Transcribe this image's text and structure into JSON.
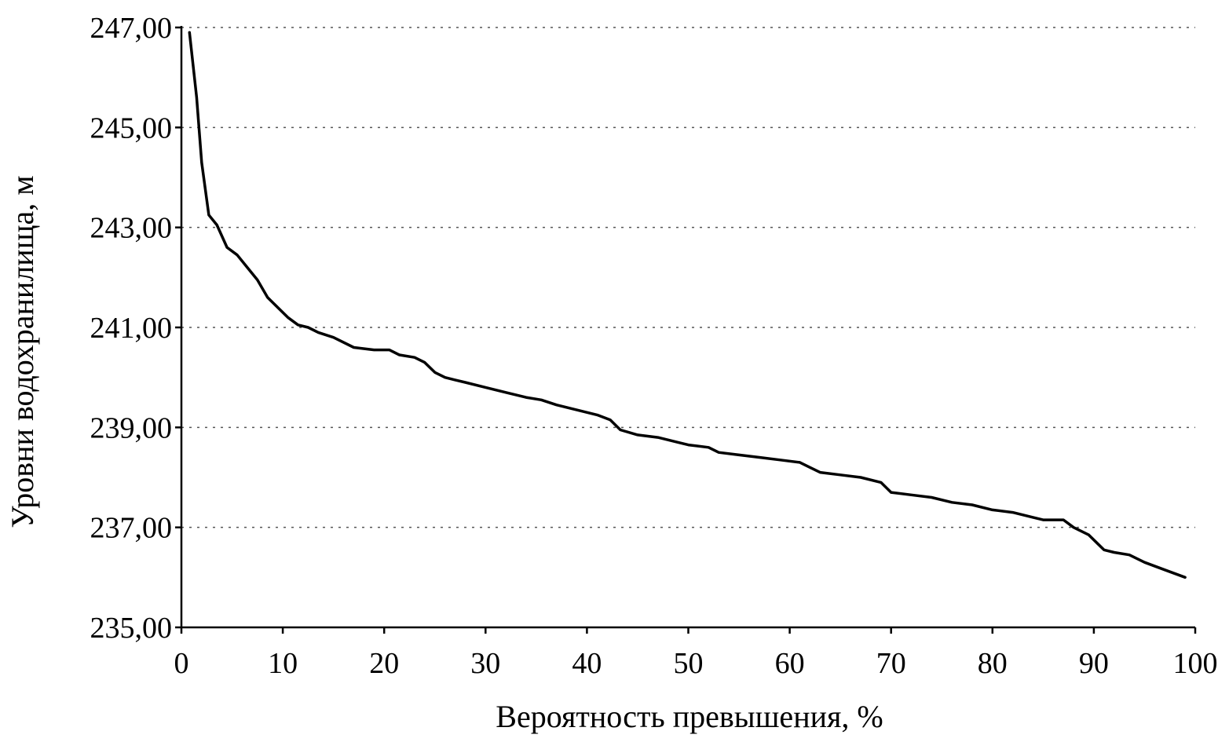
{
  "chart_data": {
    "type": "line",
    "title": "",
    "xlabel": "Вероятность превышения, %",
    "ylabel": "Уровни водохранилища, м",
    "xlim": [
      0,
      100
    ],
    "ylim": [
      235,
      247
    ],
    "x_ticks": [
      0,
      10,
      20,
      30,
      40,
      50,
      60,
      70,
      80,
      90,
      100
    ],
    "y_ticks": [
      235,
      237,
      239,
      241,
      243,
      245,
      247
    ],
    "x_tick_labels": [
      "0",
      "10",
      "20",
      "30",
      "40",
      "50",
      "60",
      "70",
      "80",
      "90",
      "100"
    ],
    "y_tick_labels": [
      "235,00",
      "237,00",
      "239,00",
      "241,00",
      "243,00",
      "245,00",
      "247,00"
    ],
    "grid": "horizontal-dashed",
    "legend": "none",
    "line_color": "#000000",
    "series": [
      {
        "x": [
          0.8,
          1.5,
          2.0,
          2.7,
          3.5,
          4.5,
          5.5,
          6.5,
          7.5,
          8.5,
          9.5,
          10.5,
          11.5,
          12.5,
          13.5,
          15,
          17,
          19,
          20.5,
          21.5,
          23,
          24,
          25,
          26,
          27,
          28,
          30,
          32,
          34,
          35.5,
          37,
          39,
          41,
          42.3,
          43.3,
          45,
          47,
          49,
          50,
          52,
          53,
          55,
          57,
          59,
          61,
          62,
          63,
          65,
          67,
          69,
          70,
          72,
          74,
          76,
          78,
          80,
          82,
          84,
          85,
          87,
          88,
          89.5,
          91,
          92,
          93.5,
          95,
          97,
          99
        ],
        "y": [
          246.9,
          245.6,
          244.3,
          243.25,
          243.05,
          242.6,
          242.45,
          242.2,
          241.95,
          241.6,
          241.4,
          241.2,
          241.05,
          241.0,
          240.9,
          240.8,
          240.6,
          240.55,
          240.55,
          240.45,
          240.4,
          240.3,
          240.1,
          240.0,
          239.95,
          239.9,
          239.8,
          239.7,
          239.6,
          239.55,
          239.45,
          239.35,
          239.25,
          239.15,
          238.95,
          238.85,
          238.8,
          238.7,
          238.65,
          238.6,
          238.5,
          238.45,
          238.4,
          238.35,
          238.3,
          238.2,
          238.1,
          238.05,
          238.0,
          237.9,
          237.7,
          237.65,
          237.6,
          237.5,
          237.45,
          237.35,
          237.3,
          237.2,
          237.15,
          237.15,
          237.0,
          236.85,
          236.55,
          236.5,
          236.45,
          236.3,
          236.15,
          236.0
        ]
      }
    ]
  }
}
